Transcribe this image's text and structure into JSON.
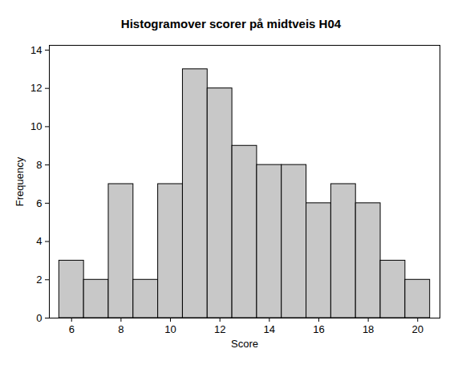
{
  "chart_data": {
    "type": "histogram",
    "title": "Histogramover scorer på midtveis H04",
    "x_label": "Score",
    "y_label": "Frequency",
    "bins": [
      5.5,
      6.5,
      7.5,
      8.5,
      9.5,
      10.5,
      11.5,
      12.5,
      13.5,
      14.5,
      15.5,
      16.5,
      17.5,
      18.5,
      19.5,
      20.5
    ],
    "counts": [
      3,
      2,
      7,
      2,
      7,
      13,
      12,
      9,
      8,
      8,
      6,
      7,
      6,
      3,
      2
    ],
    "color": "#c8c8c8",
    "xlim": [
      5.1,
      20.9
    ],
    "xticks": [
      6,
      8,
      10,
      12,
      14,
      16,
      18,
      20
    ],
    "ylim": [
      0,
      14.25
    ],
    "yticks": [
      0,
      2,
      4,
      6,
      8,
      10,
      12,
      14
    ],
    "grid": false
  }
}
